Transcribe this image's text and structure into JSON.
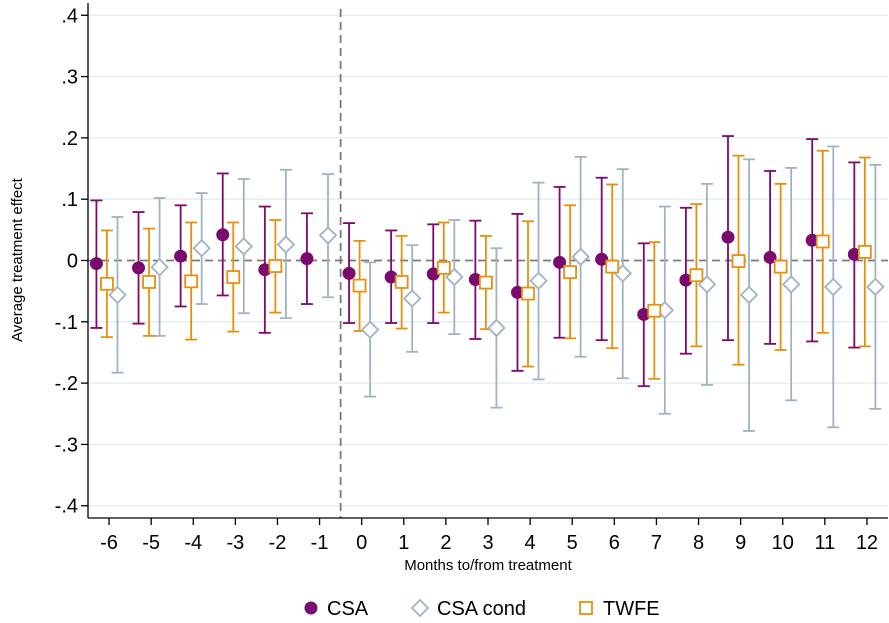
{
  "colors": {
    "csa": "#7a0a6e",
    "csa_cond": "#9fb3c4",
    "twfe": "#e8900c",
    "grid": "#e3ecf1",
    "zero_line": "#7a7a7a",
    "axis": "#000000"
  },
  "chart_data": {
    "type": "scatter",
    "title": "",
    "xlabel": "Months to/from treatment",
    "ylabel": "Average treatment effect",
    "x": [
      -6,
      -5,
      -4,
      -3,
      -2,
      -1,
      0,
      1,
      2,
      3,
      4,
      5,
      6,
      7,
      8,
      9,
      10,
      11,
      12
    ],
    "x_tick_labels": [
      "-6",
      "-5",
      "-4",
      "-3",
      "-2",
      "-1",
      "0",
      "1",
      "2",
      "3",
      "4",
      "5",
      "6",
      "7",
      "8",
      "9",
      "10",
      "11",
      "12"
    ],
    "y_ticks": [
      -0.4,
      -0.3,
      -0.2,
      -0.1,
      0,
      0.1,
      0.2,
      0.3,
      0.4
    ],
    "y_tick_labels": [
      "-.4",
      "-.3",
      "-.2",
      "-.1",
      "0",
      ".1",
      ".2",
      ".3",
      ".4"
    ],
    "ylim": [
      -0.42,
      0.42
    ],
    "xlim": [
      -6.5,
      12.5
    ],
    "grid": true,
    "reference_lines": {
      "horizontal_y": 0,
      "vertical_x": -0.5
    },
    "legend_position": "bottom",
    "series": [
      {
        "name": "CSA",
        "marker": "filled-circle",
        "values": [
          -0.005,
          -0.012,
          0.007,
          0.042,
          -0.015,
          0.003,
          -0.021,
          -0.027,
          -0.022,
          -0.031,
          -0.052,
          -0.003,
          0.002,
          -0.088,
          -0.032,
          0.038,
          0.005,
          0.033,
          0.01
        ],
        "ci_low": [
          -0.11,
          -0.103,
          -0.075,
          -0.057,
          -0.118,
          -0.071,
          -0.102,
          -0.102,
          -0.102,
          -0.128,
          -0.18,
          -0.126,
          -0.13,
          -0.205,
          -0.152,
          -0.13,
          -0.136,
          -0.132,
          -0.142
        ],
        "ci_high": [
          0.098,
          0.079,
          0.09,
          0.142,
          0.088,
          0.077,
          0.061,
          0.049,
          0.059,
          0.065,
          0.076,
          0.12,
          0.135,
          0.028,
          0.086,
          0.203,
          0.146,
          0.198,
          0.16
        ]
      },
      {
        "name": "CSA cond",
        "marker": "hollow-diamond",
        "values": [
          -0.056,
          -0.011,
          0.02,
          0.023,
          0.026,
          0.041,
          -0.113,
          -0.062,
          -0.027,
          -0.11,
          -0.033,
          0.006,
          -0.021,
          -0.081,
          -0.039,
          -0.056,
          -0.039,
          -0.043,
          -0.043
        ],
        "ci_low": [
          -0.183,
          -0.123,
          -0.071,
          -0.086,
          -0.094,
          -0.06,
          -0.222,
          -0.149,
          -0.12,
          -0.24,
          -0.194,
          -0.157,
          -0.192,
          -0.25,
          -0.203,
          -0.278,
          -0.228,
          -0.272,
          -0.242
        ],
        "ci_high": [
          0.071,
          0.102,
          0.11,
          0.133,
          0.148,
          0.141,
          -0.003,
          0.025,
          0.066,
          0.02,
          0.127,
          0.169,
          0.149,
          0.088,
          0.125,
          0.165,
          0.151,
          0.186,
          0.156
        ]
      },
      {
        "name": "TWFE",
        "marker": "hollow-square",
        "values": [
          -0.038,
          -0.035,
          -0.034,
          -0.027,
          -0.009,
          null,
          -0.041,
          -0.035,
          -0.012,
          -0.036,
          -0.054,
          -0.019,
          -0.01,
          -0.082,
          -0.024,
          -0.001,
          -0.01,
          0.031,
          0.014
        ],
        "ci_low": [
          -0.125,
          -0.123,
          -0.129,
          -0.116,
          -0.085,
          null,
          -0.115,
          -0.111,
          -0.085,
          -0.112,
          -0.173,
          -0.127,
          -0.143,
          -0.193,
          -0.14,
          -0.17,
          -0.146,
          -0.118,
          -0.14
        ],
        "ci_high": [
          0.049,
          0.052,
          0.062,
          0.062,
          0.066,
          null,
          0.032,
          0.04,
          0.062,
          0.04,
          0.064,
          0.09,
          0.124,
          0.03,
          0.092,
          0.171,
          0.125,
          0.179,
          0.168
        ]
      }
    ]
  }
}
